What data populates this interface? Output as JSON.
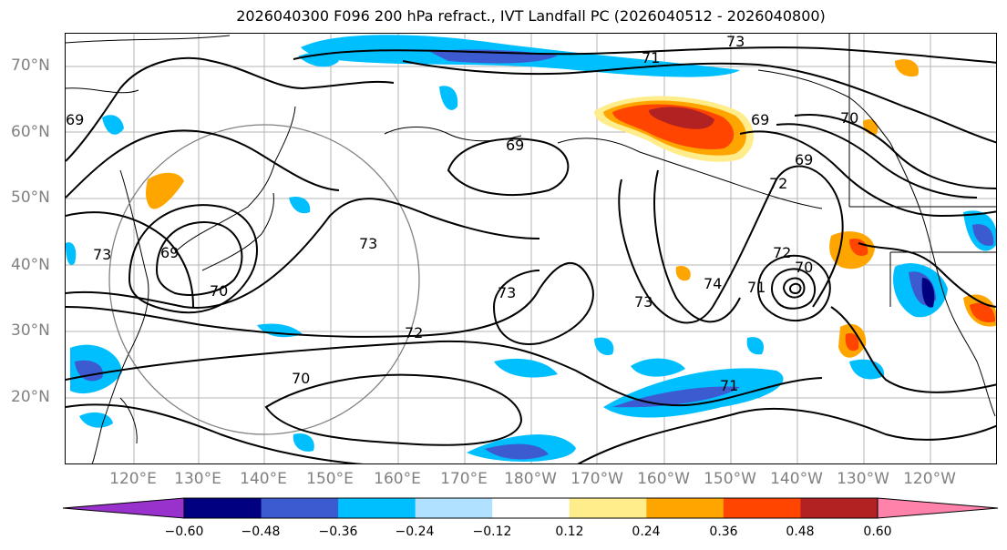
{
  "title": "2026040300 F096 200 hPa refract., IVT Landfall PC (2026040512 - 2026040800)",
  "lat_labels": [
    "70°N",
    "60°N",
    "50°N",
    "40°N",
    "30°N",
    "20°N"
  ],
  "lon_labels": [
    "120°E",
    "130°E",
    "140°E",
    "150°E",
    "160°E",
    "170°E",
    "180°W",
    "170°W",
    "160°W",
    "150°W",
    "140°W",
    "130°W",
    "120°W"
  ],
  "colorbar": {
    "ticks": [
      "−0.60",
      "−0.48",
      "−0.36",
      "−0.24",
      "−0.12",
      "0.12",
      "0.24",
      "0.36",
      "0.48",
      "0.60"
    ],
    "colors": [
      "#9932cc",
      "#000080",
      "#3c5bd0",
      "#00bfff",
      "#b0e2ff",
      "#ffffff",
      "#ffec8b",
      "#ffa500",
      "#ff4500",
      "#b22222",
      "#ff82ab"
    ]
  },
  "contour_labels": [
    "73",
    "71",
    "69",
    "69",
    "70",
    "69",
    "72",
    "73",
    "69",
    "70",
    "73",
    "72",
    "70",
    "73",
    "73",
    "74",
    "72",
    "70",
    "71",
    "71",
    "69"
  ]
}
